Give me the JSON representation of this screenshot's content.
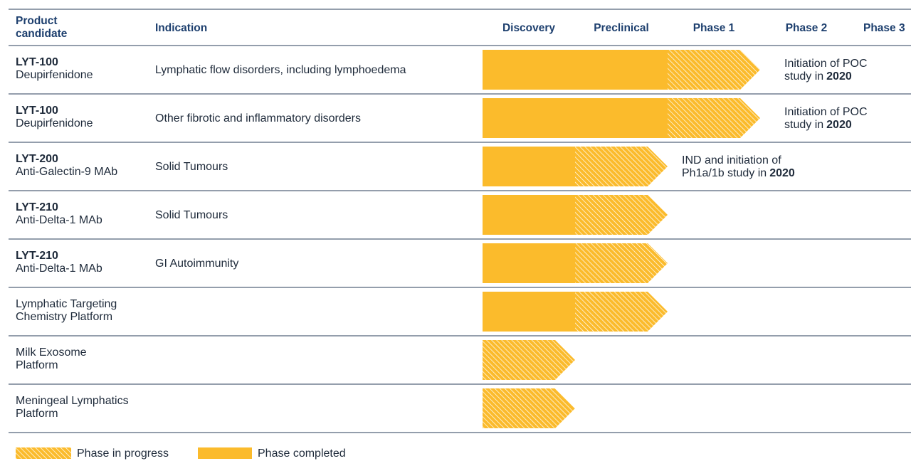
{
  "header": {
    "candidate": [
      "Product",
      "candidate"
    ],
    "indication": "Indication",
    "phases": [
      "Discovery",
      "Preclinical",
      "Phase 1",
      "Phase 2",
      "Phase 3"
    ]
  },
  "rows": [
    {
      "candidate": {
        "code": "LYT-100",
        "name": "Deupirfenidone"
      },
      "indication": "Lymphatic flow disorders, including lymphoedema",
      "note": {
        "text": [
          "Initiation of POC",
          "study in"
        ],
        "bold": "2020"
      }
    },
    {
      "candidate": {
        "code": "LYT-100",
        "name": "Deupirfenidone"
      },
      "indication": "Other fibrotic and inflammatory disorders",
      "note": {
        "text": [
          "Initiation of POC",
          "study in"
        ],
        "bold": "2020"
      }
    },
    {
      "candidate": {
        "code": "LYT-200",
        "name": "Anti-Galectin-9 MAb"
      },
      "indication": "Solid Tumours",
      "note": {
        "text": [
          "IND and initiation of",
          "Ph1a/1b study in"
        ],
        "bold": "2020"
      }
    },
    {
      "candidate": {
        "code": "LYT-210",
        "name": "Anti-Delta-1 MAb"
      },
      "indication": "Solid Tumours"
    },
    {
      "candidate": {
        "code": "LYT-210",
        "name": "Anti-Delta-1 MAb"
      },
      "indication": "GI Autoimmunity"
    },
    {
      "candidate": {
        "lines": [
          "Lymphatic Targeting",
          "Chemistry Platform"
        ]
      }
    },
    {
      "candidate": {
        "lines": [
          "Milk Exosome",
          "Platform"
        ]
      }
    },
    {
      "candidate": {
        "lines": [
          "Meningeal Lymphatics",
          "Platform"
        ]
      }
    }
  ],
  "legend": {
    "in_progress": "Phase in progress",
    "completed": "Phase completed"
  }
}
